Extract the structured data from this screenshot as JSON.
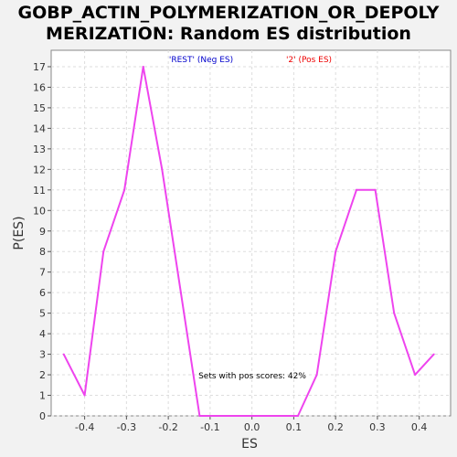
{
  "chart_data": {
    "type": "line",
    "title_line1": "GOBP_ACTIN_POLYMERIZATION_OR_DEPOLY",
    "title_line2": "MERIZATION: Random ES distribution",
    "xlabel": "ES",
    "ylabel": "P(ES)",
    "xlim": [
      -0.48,
      0.475
    ],
    "ylim": [
      0,
      17.8
    ],
    "xticks": [
      "-0.4",
      "-0.3",
      "-0.2",
      "-0.1",
      "0.0",
      "0.1",
      "0.2",
      "0.3",
      "0.4"
    ],
    "xtick_values": [
      -0.4,
      -0.3,
      -0.2,
      -0.1,
      0.0,
      0.1,
      0.2,
      0.3,
      0.4
    ],
    "yticks": [
      0,
      1,
      2,
      3,
      4,
      5,
      6,
      7,
      8,
      9,
      10,
      11,
      12,
      13,
      14,
      15,
      16,
      17
    ],
    "grid": true,
    "legend": [
      {
        "label": "'REST' (Neg ES)",
        "color": "#0000cc"
      },
      {
        "label": "'2' (Pos ES)",
        "color": "#ee0000"
      }
    ],
    "annotation": "Sets with pos scores: 42%",
    "series": [
      {
        "color": "#ee44ee",
        "x": [
          -0.45,
          -0.4,
          -0.355,
          -0.305,
          -0.26,
          -0.215,
          -0.17,
          -0.125,
          -0.08,
          -0.035,
          0.01,
          0.065,
          0.11,
          0.155,
          0.2,
          0.25,
          0.295,
          0.34,
          0.39,
          0.435
        ],
        "y": [
          3,
          1,
          8,
          11,
          17,
          12,
          6,
          0,
          0,
          0,
          0,
          0,
          0,
          2,
          8,
          11,
          11,
          5,
          2,
          3
        ]
      }
    ]
  }
}
